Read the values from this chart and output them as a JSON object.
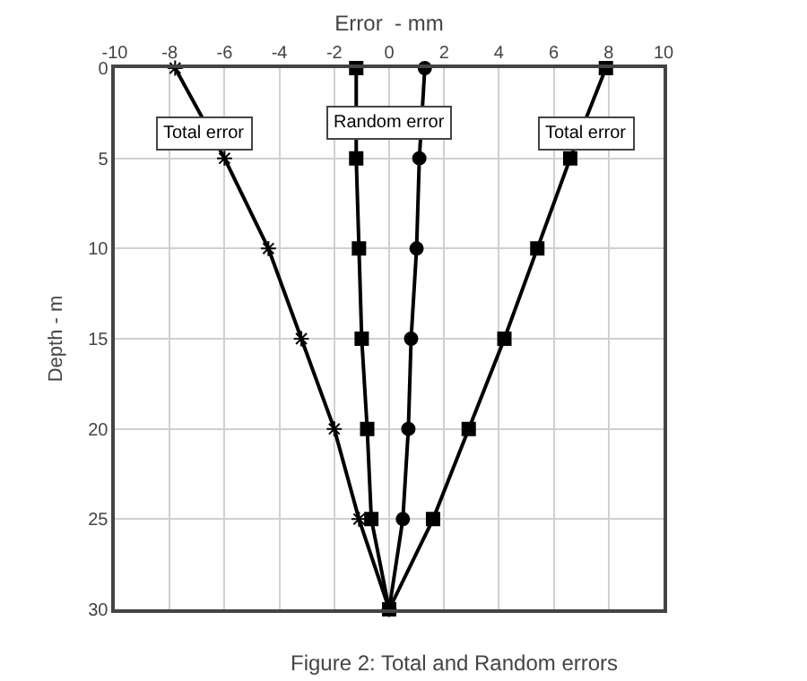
{
  "chart_data": {
    "type": "line",
    "orientation": "horizontal",
    "xlabel": "Error  - mm",
    "ylabel": "Depth - m",
    "x": [
      0,
      5,
      10,
      15,
      20,
      25,
      30
    ],
    "series": [
      {
        "color": "#000000",
        "marker": "cross",
        "values": [
          -7.8,
          -6.0,
          -4.4,
          -3.2,
          -2.0,
          -1.1,
          0
        ]
      },
      {
        "color": "#000000",
        "marker": "square",
        "values": [
          -1.2,
          -1.2,
          -1.1,
          -1.0,
          -0.8,
          -0.65,
          0
        ]
      },
      {
        "color": "#000000",
        "marker": "circle",
        "values": [
          1.3,
          1.1,
          1.0,
          0.8,
          0.7,
          0.5,
          0
        ]
      },
      {
        "color": "#000000",
        "marker": "square",
        "values": [
          7.9,
          6.6,
          5.4,
          4.2,
          2.9,
          1.6,
          0
        ]
      }
    ],
    "xlim": [
      -10,
      10
    ],
    "xticks": [
      -10,
      -8,
      -6,
      -4,
      -2,
      0,
      2,
      4,
      6,
      8,
      10
    ],
    "ylim": [
      30,
      0
    ],
    "yticks": [
      0,
      5,
      10,
      15,
      20,
      25,
      30
    ],
    "grid": true,
    "line_style": "solid",
    "annotations": [
      {
        "text": "Total error",
        "x": -6.7,
        "y": 3.6
      },
      "Random error",
      {
        "text": "Total error",
        "x": 7.2,
        "y": 3.6
      },
      "Figure 2: Total and Random errors"
    ]
  }
}
